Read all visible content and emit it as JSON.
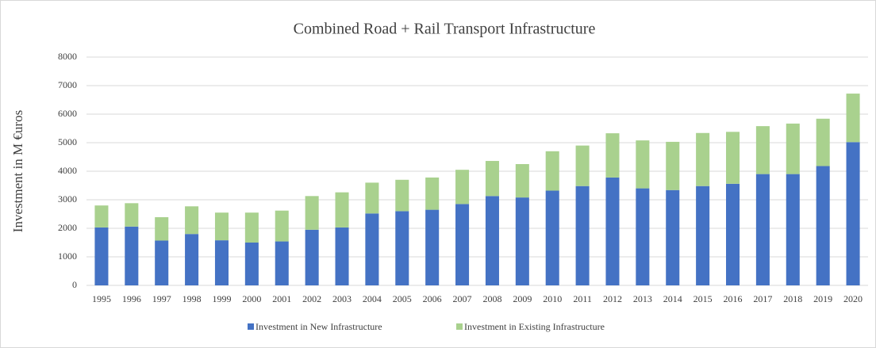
{
  "chart_data": {
    "type": "stacked_bar",
    "title": "Combined Road + Rail Transport Infrastructure",
    "y_label": "Investment in M €uros",
    "categories": [
      "1995",
      "1996",
      "1997",
      "1998",
      "1999",
      "2000",
      "2001",
      "2002",
      "2003",
      "2004",
      "2005",
      "2006",
      "2007",
      "2008",
      "2009",
      "2010",
      "2011",
      "2012",
      "2013",
      "2014",
      "2015",
      "2016",
      "2017",
      "2018",
      "2019",
      "2020"
    ],
    "series": [
      {
        "name": "Investment in New Infrastructure",
        "color": "#4472c4",
        "values": [
          2030,
          2060,
          1570,
          1800,
          1580,
          1500,
          1540,
          1950,
          2030,
          2520,
          2600,
          2650,
          2850,
          3130,
          3080,
          3320,
          3480,
          3780,
          3400,
          3340,
          3480,
          3560,
          3900,
          3900,
          4180,
          5020
        ]
      },
      {
        "name": "Investment in Existing Infrastructure",
        "color": "#a9d18e",
        "values": [
          770,
          820,
          820,
          970,
          970,
          1050,
          1080,
          1180,
          1230,
          1080,
          1100,
          1130,
          1200,
          1230,
          1170,
          1380,
          1420,
          1550,
          1680,
          1690,
          1860,
          1820,
          1680,
          1770,
          1660,
          1700
        ]
      }
    ],
    "ylim": [
      0,
      8000
    ],
    "yticks": [
      0,
      1000,
      2000,
      3000,
      4000,
      5000,
      6000,
      7000,
      8000
    ],
    "grid": true,
    "legend": "bottom"
  }
}
